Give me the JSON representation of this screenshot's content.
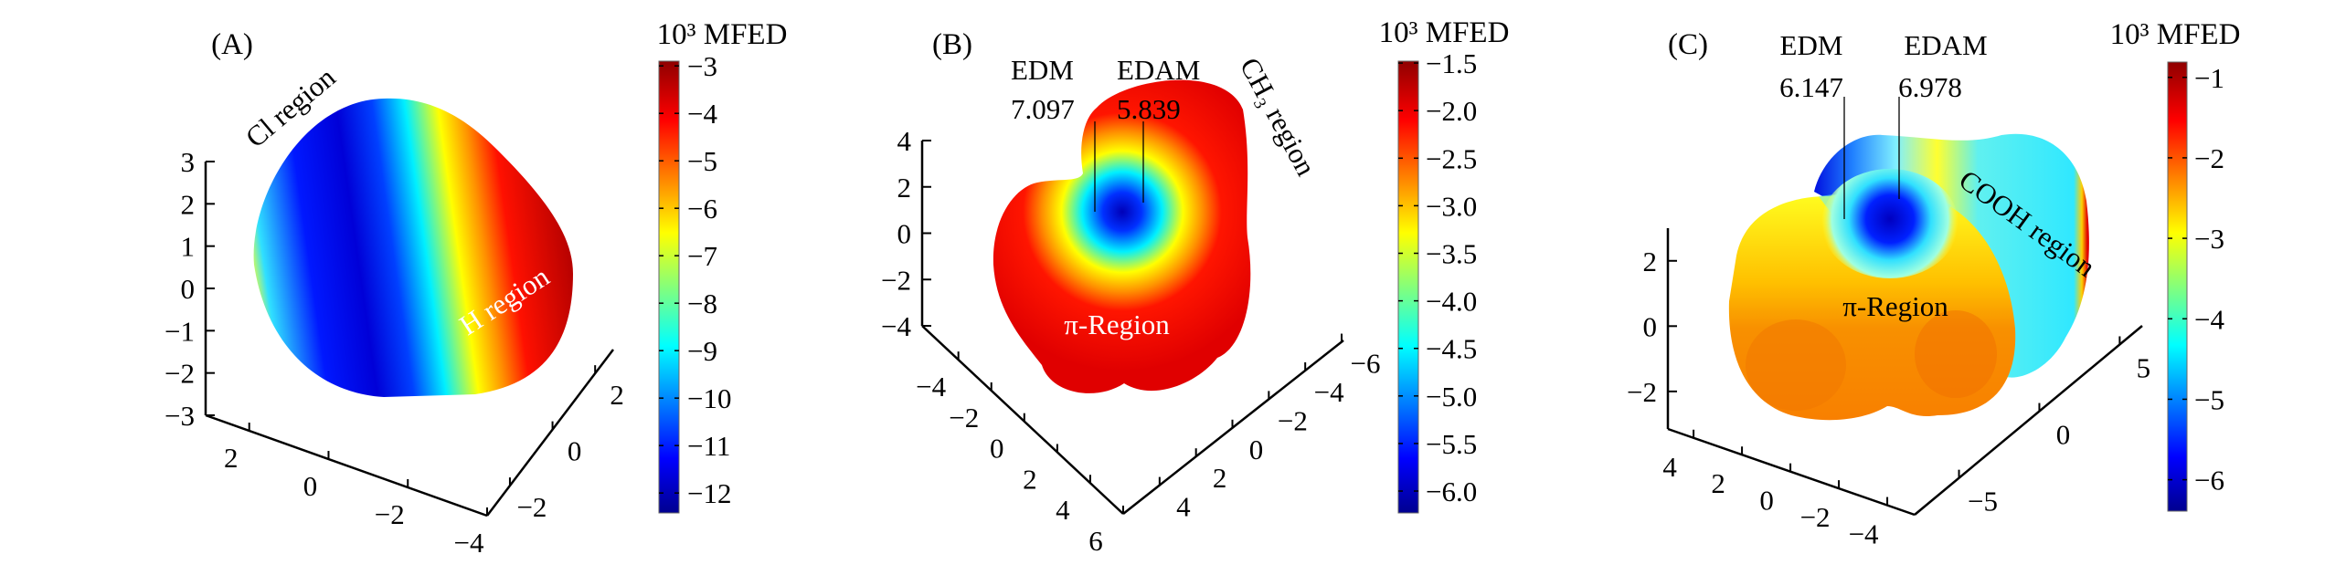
{
  "chart_data": [
    {
      "type": "surface3d",
      "panel_label": "(A)",
      "colorbar": {
        "title": "10³ MFED",
        "clim": [
          -12.42,
          -2.9
        ],
        "colormap": "jet",
        "ticks": [
          {
            "value": -3,
            "label": "−3"
          },
          {
            "value": -4,
            "label": "−4"
          },
          {
            "value": -5,
            "label": "−5"
          },
          {
            "value": -6,
            "label": "−6"
          },
          {
            "value": -7,
            "label": "−7"
          },
          {
            "value": -8,
            "label": "−8"
          },
          {
            "value": -9,
            "label": "−9"
          },
          {
            "value": -10,
            "label": "−10"
          },
          {
            "value": -11,
            "label": "−11"
          },
          {
            "value": -12,
            "label": "−12"
          }
        ]
      },
      "axes": {
        "z": {
          "range": [
            -3,
            3
          ],
          "ticks": [
            {
              "value": 3,
              "label": "3"
            },
            {
              "value": 2,
              "label": "2"
            },
            {
              "value": 1,
              "label": "1"
            },
            {
              "value": 0,
              "label": "0"
            },
            {
              "value": -1,
              "label": "−1"
            },
            {
              "value": -2,
              "label": "−2"
            },
            {
              "value": -3,
              "label": "−3"
            }
          ]
        },
        "x": {
          "range": [
            3.1,
            -4
          ],
          "ticks": [
            {
              "value": 2,
              "label": "2"
            },
            {
              "value": 0,
              "label": "0"
            },
            {
              "value": -2,
              "label": "−2"
            },
            {
              "value": -4,
              "label": "−4"
            }
          ]
        },
        "y": {
          "range": [
            -3.07,
            2.85
          ],
          "ticks": [
            {
              "value": -2,
              "label": "−2"
            },
            {
              "value": 0,
              "label": "0"
            },
            {
              "value": 2,
              "label": "2"
            }
          ]
        }
      },
      "annotations": {
        "region1": "Cl region",
        "region2": "H region"
      }
    },
    {
      "type": "surface3d",
      "panel_label": "(B)",
      "colorbar": {
        "title": "10³ MFED",
        "clim": [
          -6.23,
          -1.48
        ],
        "colormap": "jet",
        "ticks": [
          {
            "value": -1.5,
            "label": "−1.5"
          },
          {
            "value": -2.0,
            "label": "−2.0"
          },
          {
            "value": -2.5,
            "label": "−2.5"
          },
          {
            "value": -3.0,
            "label": "−3.0"
          },
          {
            "value": -3.5,
            "label": "−3.5"
          },
          {
            "value": -4.0,
            "label": "−4.0"
          },
          {
            "value": -4.5,
            "label": "−4.5"
          },
          {
            "value": -5.0,
            "label": "−5.0"
          },
          {
            "value": -5.5,
            "label": "−5.5"
          },
          {
            "value": -6.0,
            "label": "−6.0"
          }
        ]
      },
      "axes": {
        "z": {
          "range": [
            -4,
            4
          ],
          "ticks": [
            {
              "value": 4,
              "label": "4"
            },
            {
              "value": 2,
              "label": "2"
            },
            {
              "value": 0,
              "label": "0"
            },
            {
              "value": -2,
              "label": "−2"
            },
            {
              "value": -4,
              "label": "−4"
            }
          ]
        },
        "x": {
          "range": [
            -6.2,
            6
          ],
          "ticks": [
            {
              "value": -4,
              "label": "−4"
            },
            {
              "value": -2,
              "label": "−2"
            },
            {
              "value": 0,
              "label": "0"
            },
            {
              "value": 2,
              "label": "2"
            },
            {
              "value": 4,
              "label": "4"
            },
            {
              "value": 6,
              "label": "6"
            }
          ]
        },
        "y": {
          "range": [
            6,
            -6.1
          ],
          "ticks": [
            {
              "value": 4,
              "label": "4"
            },
            {
              "value": 2,
              "label": "2"
            },
            {
              "value": 0,
              "label": "0"
            },
            {
              "value": -2,
              "label": "−2"
            },
            {
              "value": -4,
              "label": "−4"
            },
            {
              "value": -6,
              "label": "−6"
            }
          ]
        }
      },
      "annotations": {
        "edm_label": "EDM",
        "edm_value": "7.097",
        "edam_label": "EDAM",
        "edam_value": "5.839",
        "region1": "CH₃ region",
        "region2": "π-Region"
      }
    },
    {
      "type": "surface3d",
      "panel_label": "(C)",
      "colorbar": {
        "title": "10³ MFED",
        "clim": [
          -6.39,
          -0.81
        ],
        "colormap": "jet",
        "ticks": [
          {
            "value": -1,
            "label": "−1"
          },
          {
            "value": -2,
            "label": "−2"
          },
          {
            "value": -3,
            "label": "−3"
          },
          {
            "value": -4,
            "label": "−4"
          },
          {
            "value": -5,
            "label": "−5"
          },
          {
            "value": -6,
            "label": "−6"
          }
        ]
      },
      "axes": {
        "z": {
          "range": [
            -3.15,
            3.0
          ],
          "ticks": [
            {
              "value": 2,
              "label": "2"
            },
            {
              "value": 0,
              "label": "0"
            },
            {
              "value": -2,
              "label": "−2"
            }
          ]
        },
        "x": {
          "range": [
            5.06,
            -5.13
          ],
          "ticks": [
            {
              "value": 4,
              "label": "4"
            },
            {
              "value": 2,
              "label": "2"
            },
            {
              "value": 0,
              "label": "0"
            },
            {
              "value": -2,
              "label": "−2"
            },
            {
              "value": -4,
              "label": "−4"
            }
          ]
        },
        "y": {
          "range": [
            -7.76,
            6.4
          ],
          "ticks": [
            {
              "value": -5,
              "label": "−5"
            },
            {
              "value": 0,
              "label": "0"
            },
            {
              "value": 5,
              "label": "5"
            }
          ]
        }
      },
      "annotations": {
        "edm_label": "EDM",
        "edm_value": "6.147",
        "edam_label": "EDAM",
        "edam_value": "6.978",
        "region1": "COOH region",
        "region2": "π-Region"
      }
    }
  ]
}
